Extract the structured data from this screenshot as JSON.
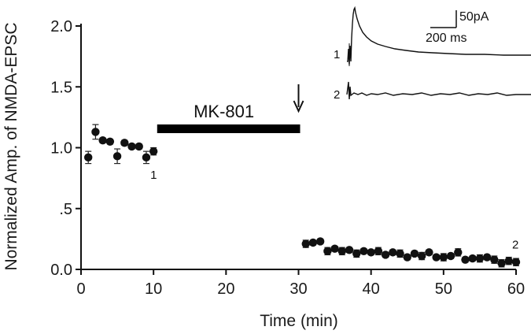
{
  "chart_data": {
    "type": "scatter",
    "title": "",
    "xlabel": "Time (min)",
    "ylabel": "Normalized Amp. of NMDA-EPSC",
    "xlim": [
      0,
      60
    ],
    "ylim": [
      0,
      2.0
    ],
    "xticks": [
      0,
      10,
      20,
      30,
      40,
      50,
      60
    ],
    "xtick_labels": [
      "0",
      "10",
      "20",
      "30",
      "40",
      "50",
      "60"
    ],
    "yticks": [
      0,
      0.5,
      1.0,
      1.5,
      2.0
    ],
    "ytick_labels": [
      "0.0",
      ".5",
      "1.0",
      "1.5",
      "2.0"
    ],
    "series": [
      {
        "name": "NMDA-EPSC amplitude",
        "points": [
          {
            "x": 1,
            "y": 0.92,
            "err": 0.05
          },
          {
            "x": 2,
            "y": 1.13,
            "err": 0.06
          },
          {
            "x": 3,
            "y": 1.06,
            "err": 0.02
          },
          {
            "x": 4,
            "y": 1.05,
            "err": 0.02
          },
          {
            "x": 5,
            "y": 0.93,
            "err": 0.06
          },
          {
            "x": 6,
            "y": 1.04,
            "err": 0.02
          },
          {
            "x": 7,
            "y": 1.01,
            "err": 0.02
          },
          {
            "x": 8,
            "y": 1.01,
            "err": 0.02
          },
          {
            "x": 9,
            "y": 0.92,
            "err": 0.05
          },
          {
            "x": 10,
            "y": 0.97,
            "err": 0.03
          },
          {
            "x": 31,
            "y": 0.21,
            "err": 0.03
          },
          {
            "x": 32,
            "y": 0.22,
            "err": 0.02
          },
          {
            "x": 33,
            "y": 0.23,
            "err": 0.02
          },
          {
            "x": 34,
            "y": 0.15,
            "err": 0.03
          },
          {
            "x": 35,
            "y": 0.17,
            "err": 0.02
          },
          {
            "x": 36,
            "y": 0.15,
            "err": 0.03
          },
          {
            "x": 37,
            "y": 0.16,
            "err": 0.02
          },
          {
            "x": 38,
            "y": 0.13,
            "err": 0.03
          },
          {
            "x": 39,
            "y": 0.15,
            "err": 0.02
          },
          {
            "x": 40,
            "y": 0.14,
            "err": 0.02
          },
          {
            "x": 41,
            "y": 0.15,
            "err": 0.03
          },
          {
            "x": 42,
            "y": 0.12,
            "err": 0.02
          },
          {
            "x": 43,
            "y": 0.14,
            "err": 0.02
          },
          {
            "x": 44,
            "y": 0.13,
            "err": 0.03
          },
          {
            "x": 45,
            "y": 0.1,
            "err": 0.02
          },
          {
            "x": 46,
            "y": 0.13,
            "err": 0.02
          },
          {
            "x": 47,
            "y": 0.11,
            "err": 0.03
          },
          {
            "x": 48,
            "y": 0.14,
            "err": 0.02
          },
          {
            "x": 49,
            "y": 0.1,
            "err": 0.02
          },
          {
            "x": 50,
            "y": 0.1,
            "err": 0.03
          },
          {
            "x": 51,
            "y": 0.11,
            "err": 0.02
          },
          {
            "x": 52,
            "y": 0.14,
            "err": 0.03
          },
          {
            "x": 53,
            "y": 0.08,
            "err": 0.02
          },
          {
            "x": 54,
            "y": 0.09,
            "err": 0.02
          },
          {
            "x": 55,
            "y": 0.09,
            "err": 0.03
          },
          {
            "x": 56,
            "y": 0.1,
            "err": 0.02
          },
          {
            "x": 57,
            "y": 0.08,
            "err": 0.03
          },
          {
            "x": 58,
            "y": 0.05,
            "err": 0.03
          },
          {
            "x": 59,
            "y": 0.07,
            "err": 0.03
          },
          {
            "x": 60,
            "y": 0.06,
            "err": 0.03
          }
        ]
      }
    ],
    "drug_bar": {
      "label": "MK-801",
      "start": 10.5,
      "end": 30
    },
    "arrow_time": 30,
    "point_labels": [
      {
        "text": "1",
        "x": 10,
        "y": 0.97
      },
      {
        "text": "2",
        "x": 60,
        "y": 0.06
      }
    ],
    "inset": {
      "traces": [
        {
          "label": "1"
        },
        {
          "label": "2"
        }
      ],
      "scale_bar": {
        "amplitude_label": "50pA",
        "time_label": "200 ms"
      }
    }
  }
}
